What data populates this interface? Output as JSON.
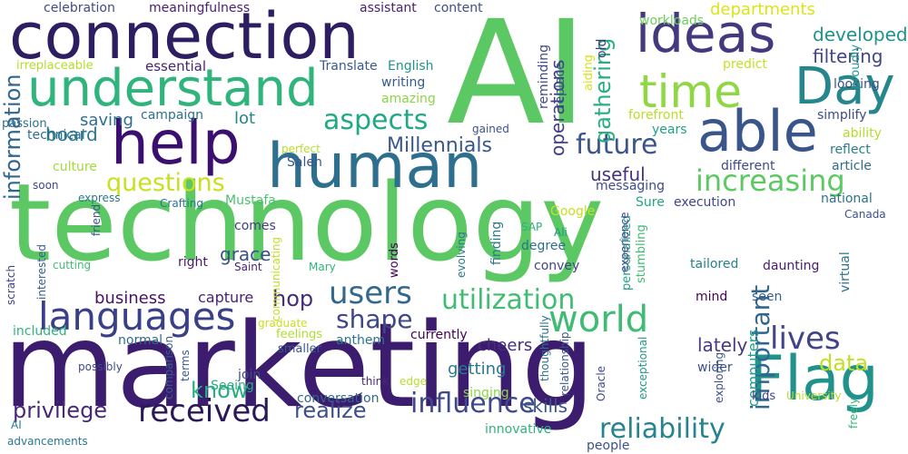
{
  "words": [
    {
      "text": "technology",
      "color": "#5cc863"
    },
    {
      "text": "marketing",
      "color": "#3b1c6e"
    },
    {
      "text": "AI",
      "color": "#5cc863"
    },
    {
      "text": "connection",
      "color": "#2d1e62"
    },
    {
      "text": "human",
      "color": "#2f6f8e"
    },
    {
      "text": "help",
      "color": "#3b0f70"
    },
    {
      "text": "understand",
      "color": "#2fb47c"
    },
    {
      "text": "ideas",
      "color": "#44397f"
    },
    {
      "text": "time",
      "color": "#8fd744"
    },
    {
      "text": "Day",
      "color": "#26868e"
    },
    {
      "text": "able",
      "color": "#3a548c"
    },
    {
      "text": "Flag",
      "color": "#21918c"
    },
    {
      "text": "languages",
      "color": "#3a3f8a"
    },
    {
      "text": "world",
      "color": "#3fbc73"
    },
    {
      "text": "received",
      "color": "#2a1858"
    },
    {
      "text": "influence",
      "color": "#3e4989"
    },
    {
      "text": "users",
      "color": "#31688e"
    },
    {
      "text": "utilization",
      "color": "#40bd72"
    },
    {
      "text": "questions",
      "color": "#c8e020"
    },
    {
      "text": "increasing",
      "color": "#5ec962"
    },
    {
      "text": "future",
      "color": "#39558c"
    },
    {
      "text": "aspects",
      "color": "#22a884"
    },
    {
      "text": "Millennials",
      "color": "#38588c"
    },
    {
      "text": "shape",
      "color": "#3f4788"
    },
    {
      "text": "lives",
      "color": "#414487"
    },
    {
      "text": "reliability",
      "color": "#25848e"
    },
    {
      "text": "realize",
      "color": "#3c4f8a"
    },
    {
      "text": "privilege",
      "color": "#482878"
    },
    {
      "text": "know",
      "color": "#27ad81"
    },
    {
      "text": "hop",
      "color": "#472c7a"
    },
    {
      "text": "important",
      "color": "#31678e"
    },
    {
      "text": "information",
      "color": "#31668e"
    },
    {
      "text": "board",
      "color": "#2a788e"
    },
    {
      "text": "data",
      "color": "#c2df23"
    },
    {
      "text": "gathering",
      "color": "#28ae80"
    },
    {
      "text": "operations",
      "color": "#433d84"
    },
    {
      "text": "developed",
      "color": "#20928c"
    },
    {
      "text": "departments",
      "color": "#dde318"
    },
    {
      "text": "filtering",
      "color": "#404688"
    },
    {
      "text": "business",
      "color": "#471164"
    },
    {
      "text": "capture",
      "color": "#482173"
    },
    {
      "text": "grace",
      "color": "#3b518b"
    },
    {
      "text": "useful",
      "color": "#46327e"
    },
    {
      "text": "lot",
      "color": "#25858e"
    },
    {
      "text": "saving",
      "color": "#2e6e8e"
    },
    {
      "text": "campaign",
      "color": "#2c718e"
    },
    {
      "text": "lately",
      "color": "#443983"
    },
    {
      "text": "getting",
      "color": "#29798e"
    },
    {
      "text": "cheers",
      "color": "#472d7b"
    },
    {
      "text": "skills",
      "color": "#3a548c"
    },
    {
      "text": "conversation",
      "color": "#31688e"
    },
    {
      "text": "comes",
      "color": "#433e85"
    },
    {
      "text": "right",
      "color": "#481a6c"
    },
    {
      "text": "computers",
      "color": "#1f9e89"
    },
    {
      "text": "culture",
      "color": "#a2da37"
    },
    {
      "text": "technical",
      "color": "#2e6f8e"
    },
    {
      "text": "passion",
      "color": "#2d708e"
    },
    {
      "text": "irreplaceable",
      "color": "#b5de2b"
    },
    {
      "text": "essential",
      "color": "#482475"
    },
    {
      "text": "Translate",
      "color": "#38598c"
    },
    {
      "text": "English",
      "color": "#1f948c"
    },
    {
      "text": "writing",
      "color": "#365c8d"
    },
    {
      "text": "amazing",
      "color": "#8bd646"
    },
    {
      "text": "celebration",
      "color": "#3e4c8a"
    },
    {
      "text": "meaningfulness",
      "color": "#481f70"
    },
    {
      "text": "assistant",
      "color": "#482374"
    },
    {
      "text": "content",
      "color": "#3d4e8a"
    },
    {
      "text": "workloads",
      "color": "#6ece58"
    },
    {
      "text": "aiding",
      "color": "#d8e219"
    },
    {
      "text": "reminding",
      "color": "#3e4a89"
    },
    {
      "text": "old",
      "color": "#453581"
    },
    {
      "text": "replace",
      "color": "#3b528b"
    },
    {
      "text": "predict",
      "color": "#c5e021"
    },
    {
      "text": "looking",
      "color": "#3b518b"
    },
    {
      "text": "forefront",
      "color": "#b8de29"
    },
    {
      "text": "gained",
      "color": "#3b528b"
    },
    {
      "text": "simplify",
      "color": "#3e4989"
    },
    {
      "text": "proudly",
      "color": "#1f9a8a"
    },
    {
      "text": "years",
      "color": "#1fa187"
    },
    {
      "text": "ability",
      "color": "#b5de2b"
    },
    {
      "text": "reflect",
      "color": "#277f8e"
    },
    {
      "text": "perfect",
      "color": "#b8de29"
    },
    {
      "text": "different",
      "color": "#3e4a89"
    },
    {
      "text": "article",
      "color": "#2f6c8e"
    },
    {
      "text": "Saleh",
      "color": "#39568c"
    },
    {
      "text": "soon",
      "color": "#3f4889"
    },
    {
      "text": "national",
      "color": "#2d718e"
    },
    {
      "text": "messaging",
      "color": "#3e4c8a"
    },
    {
      "text": "express",
      "color": "#2a788e"
    },
    {
      "text": "Crafting",
      "color": "#2a768e"
    },
    {
      "text": "Mustafa",
      "color": "#4ac16d"
    },
    {
      "text": "Sure",
      "color": "#22a785"
    },
    {
      "text": "execution",
      "color": "#3f4788"
    },
    {
      "text": "Canada",
      "color": "#3c508b"
    },
    {
      "text": "friend",
      "color": "#3b528b"
    },
    {
      "text": "Google",
      "color": "#c5e021"
    },
    {
      "text": "SAP",
      "color": "#2db27d"
    },
    {
      "text": "Ali",
      "color": "#1f988b"
    },
    {
      "text": "personalized",
      "color": "#1f9e89"
    },
    {
      "text": "finding",
      "color": "#2a788e"
    },
    {
      "text": "experience",
      "color": "#404588"
    },
    {
      "text": "words",
      "color": "#440154"
    },
    {
      "text": "communicating",
      "color": "#c2df23"
    },
    {
      "text": "interested",
      "color": "#365d8d"
    },
    {
      "text": "cutting",
      "color": "#3fbc73"
    },
    {
      "text": "Saint",
      "color": "#482475"
    },
    {
      "text": "Mary",
      "color": "#2fb47c"
    },
    {
      "text": "degree",
      "color": "#2d708e"
    },
    {
      "text": "stumbling",
      "color": "#3fbc73"
    },
    {
      "text": "convey",
      "color": "#414487"
    },
    {
      "text": "evolving",
      "color": "#2a788e"
    },
    {
      "text": "tailored",
      "color": "#26828e"
    },
    {
      "text": "mind",
      "color": "#440154"
    },
    {
      "text": "daunting",
      "color": "#481b6d"
    },
    {
      "text": "virtual",
      "color": "#2c728e"
    },
    {
      "text": "seen",
      "color": "#355f8d"
    },
    {
      "text": "scratch",
      "color": "#404588"
    },
    {
      "text": "graduate",
      "color": "#c8e020"
    },
    {
      "text": "included",
      "color": "#2fb47c"
    },
    {
      "text": "feelings",
      "color": "#b0dd2f"
    },
    {
      "text": "normal",
      "color": "#306a8e"
    },
    {
      "text": "anthem",
      "color": "#2b758e"
    },
    {
      "text": "currently",
      "color": "#440154"
    },
    {
      "text": "smaller",
      "color": "#375a8c"
    },
    {
      "text": "possibly",
      "color": "#3e4a89"
    },
    {
      "text": "wider",
      "color": "#3b528b"
    },
    {
      "text": "join",
      "color": "#3e4c8a"
    },
    {
      "text": "comparison",
      "color": "#355f8d"
    },
    {
      "text": "terms",
      "color": "#38598c"
    },
    {
      "text": "Seeing",
      "color": "#26ad81"
    },
    {
      "text": "think",
      "color": "#482878"
    },
    {
      "text": "edge",
      "color": "#b5de2b"
    },
    {
      "text": "singing",
      "color": "#8bd646"
    },
    {
      "text": "thoughtfully",
      "color": "#2c718e"
    },
    {
      "text": "relationship",
      "color": "#39568c"
    },
    {
      "text": "Oracle",
      "color": "#3f4889"
    },
    {
      "text": "exceptional",
      "color": "#1f9a8a"
    },
    {
      "text": "innovative",
      "color": "#2fb47c"
    },
    {
      "text": "exploring",
      "color": "#3b518b"
    },
    {
      "text": "kids",
      "color": "#404588"
    },
    {
      "text": "University",
      "color": "#b5de2b"
    },
    {
      "text": "freely",
      "color": "#35b779"
    },
    {
      "text": "AI",
      "color": "#25838e"
    },
    {
      "text": "advancements",
      "color": "#2a788e"
    },
    {
      "text": "people",
      "color": "#3b528b"
    }
  ]
}
